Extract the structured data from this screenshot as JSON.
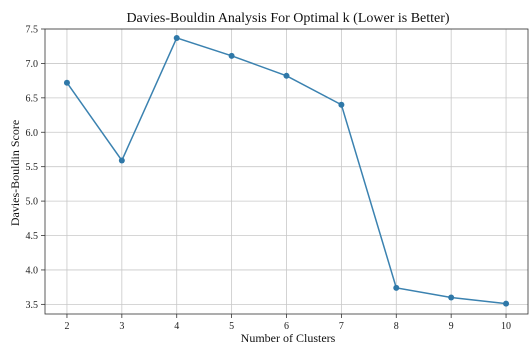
{
  "chart_data": {
    "type": "line",
    "title": "Davies-Bouldin Analysis For Optimal k (Lower is Better)",
    "xlabel": "Number of Clusters",
    "ylabel": "Davies-Bouldin Score",
    "x": [
      2,
      3,
      4,
      5,
      6,
      7,
      8,
      9,
      10
    ],
    "series": [
      {
        "values": [
          6.72,
          5.59,
          7.37,
          7.11,
          6.82,
          6.4,
          3.74,
          3.6,
          3.51
        ]
      }
    ],
    "xticks": [
      "2",
      "3",
      "4",
      "5",
      "6",
      "7",
      "8",
      "9",
      "10"
    ],
    "yticks": [
      "3.5",
      "4.0",
      "4.5",
      "5.0",
      "5.5",
      "6.0",
      "6.5",
      "7.0",
      "7.5"
    ],
    "xlim": [
      1.6,
      10.4
    ],
    "ylim": [
      3.36,
      7.5
    ],
    "grid": true,
    "line_color": "#3b82b0",
    "marker_color": "#2f78a8"
  }
}
